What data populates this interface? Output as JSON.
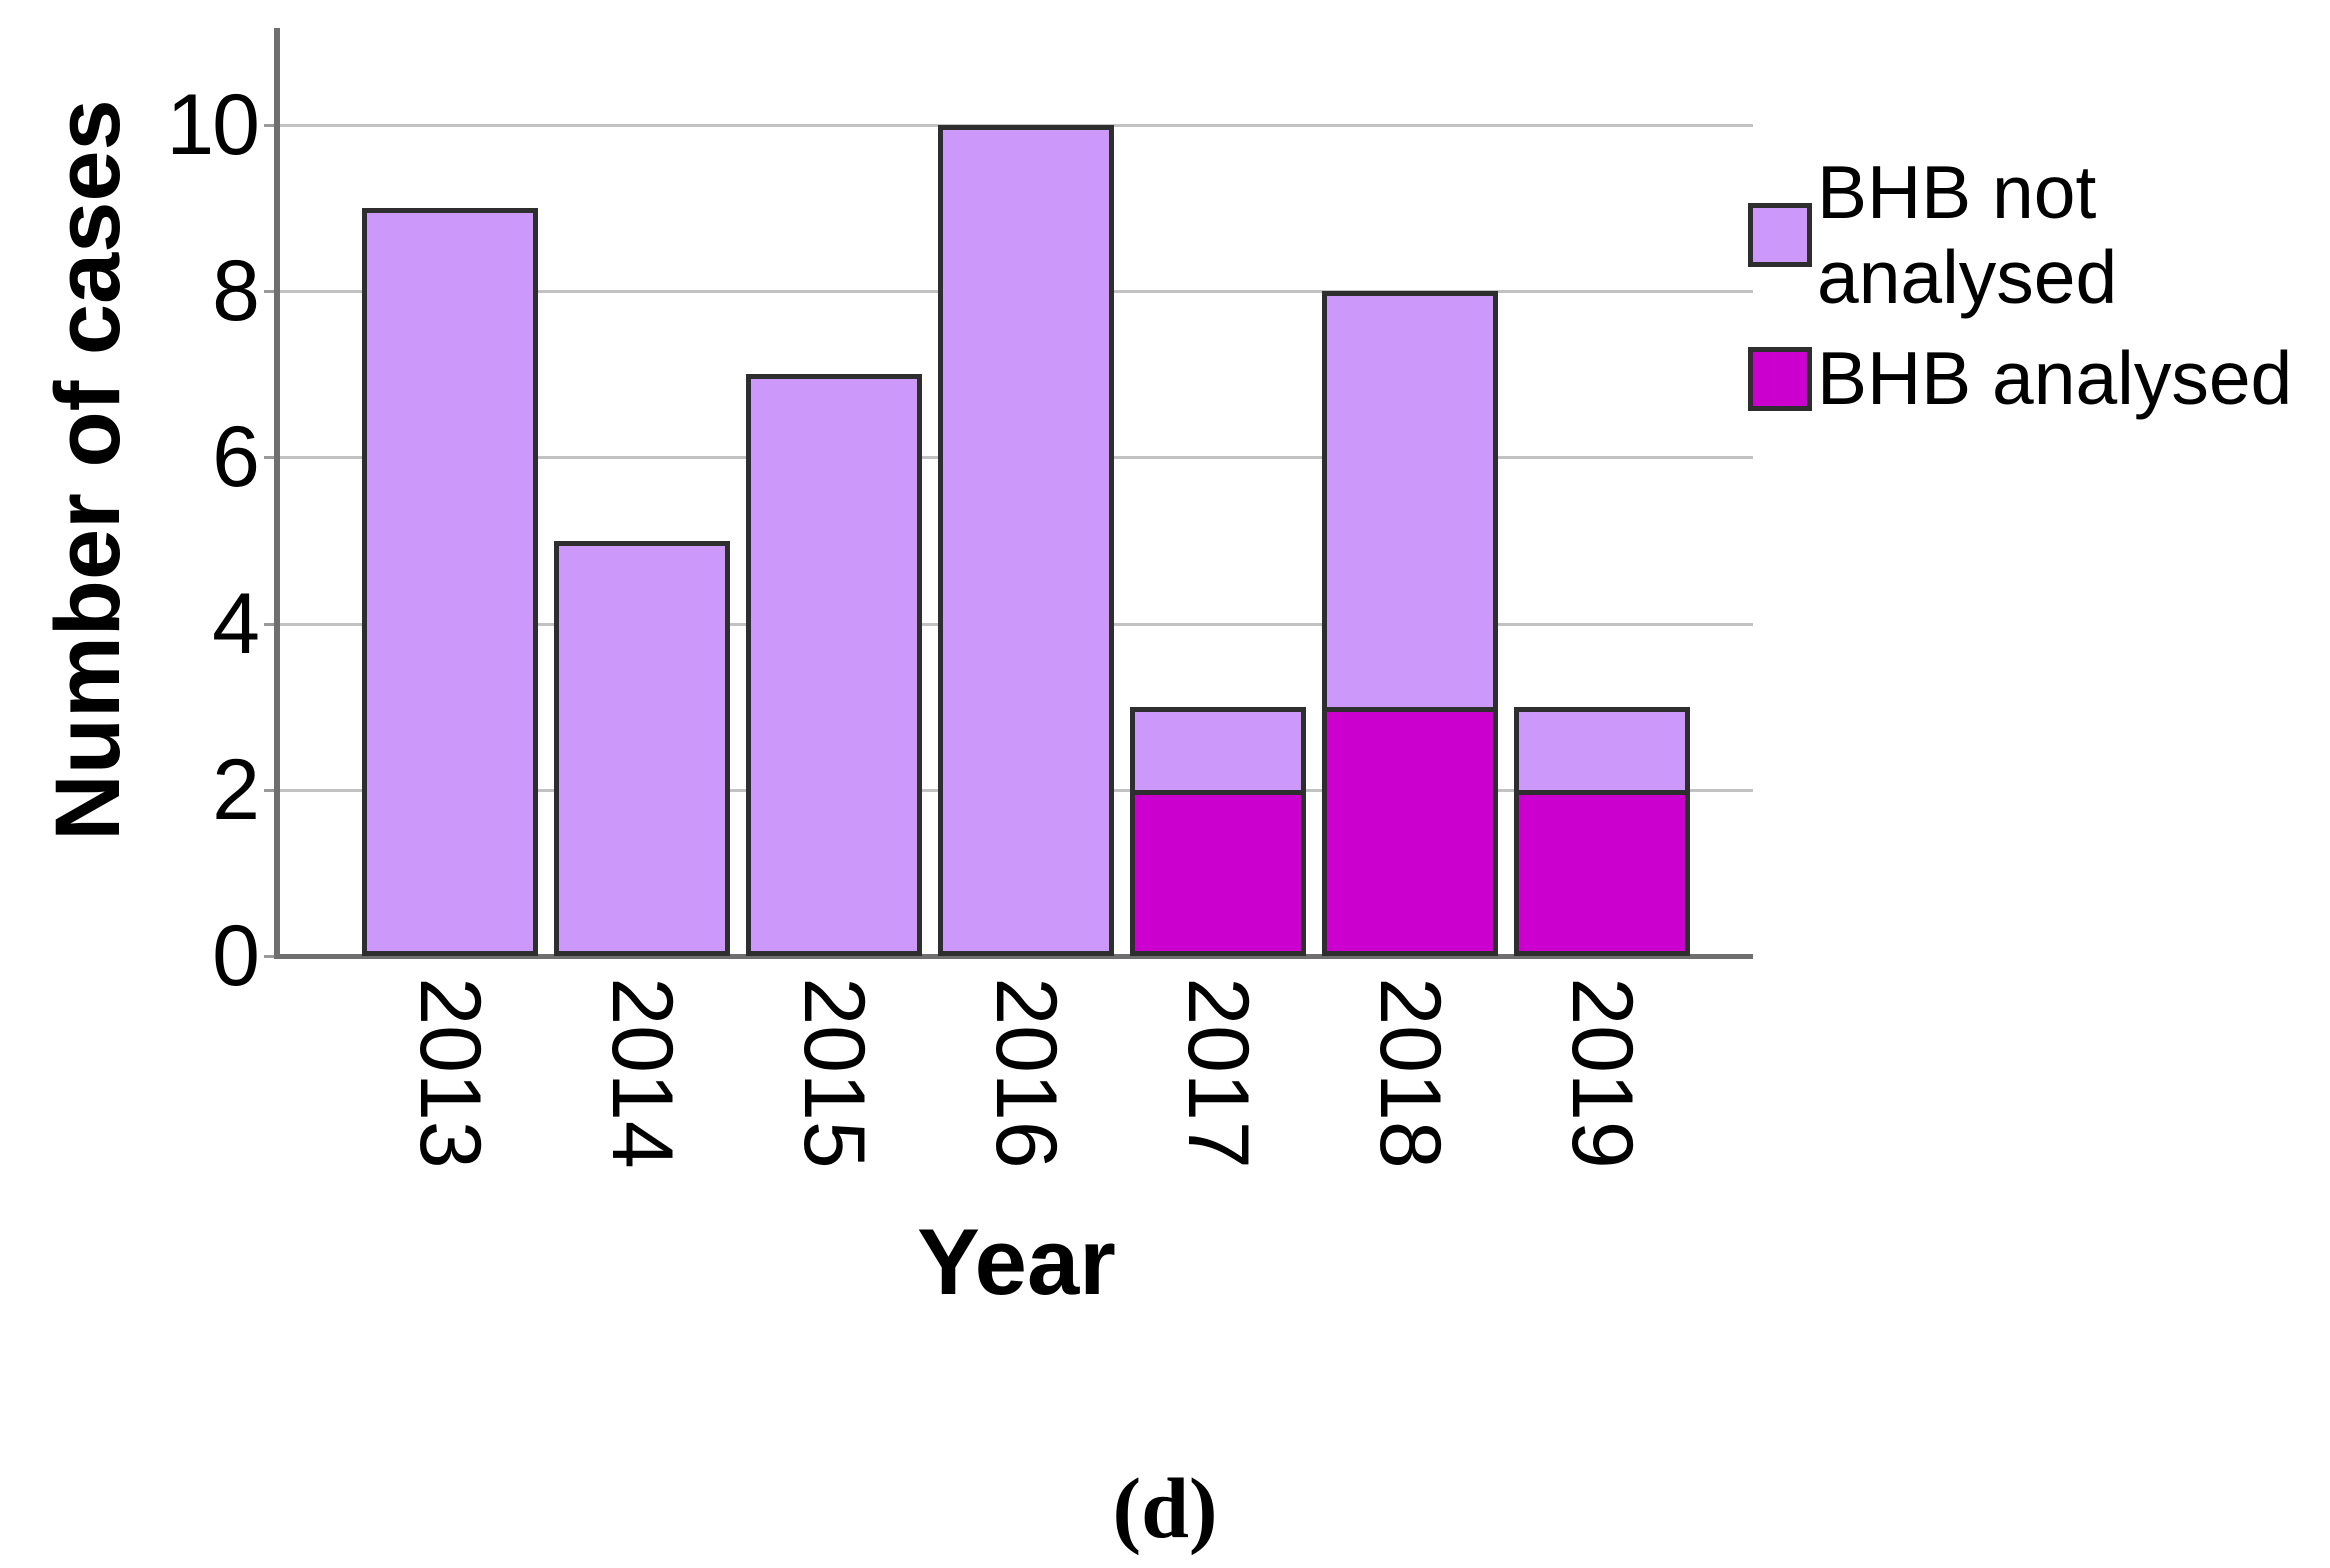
{
  "caption": "(d)",
  "chart_data": {
    "type": "bar",
    "stacked": true,
    "title": "",
    "xlabel": "Year",
    "ylabel": "Number of cases",
    "categories": [
      "2013",
      "2014",
      "2015",
      "2016",
      "2017",
      "2018",
      "2019"
    ],
    "series": [
      {
        "name": "BHB not analysed",
        "color": "#CC99FB",
        "values": [
          9,
          5,
          7,
          10,
          1,
          5,
          1
        ]
      },
      {
        "name": "BHB analysed",
        "color": "#CC00CE",
        "values": [
          0,
          0,
          0,
          0,
          2,
          3,
          2
        ]
      }
    ],
    "stack_order": [
      "BHB analysed",
      "BHB not analysed"
    ],
    "totals": [
      9,
      5,
      7,
      10,
      3,
      8,
      3
    ],
    "yticks": [
      0,
      2,
      4,
      6,
      8,
      10
    ],
    "ylim": [
      0,
      11.1
    ],
    "grid": "horizontal",
    "legend_position": "right-top",
    "legend": [
      {
        "label": "BHB not analysed",
        "lines": [
          "BHB not",
          "analysed"
        ],
        "color": "#CC99FB"
      },
      {
        "label": "BHB analysed",
        "lines": [
          "BHB analysed"
        ],
        "color": "#CC00CE"
      }
    ],
    "colors": {
      "bar_fill_not_analysed": "#CC99FB",
      "bar_fill_analysed": "#CC00CE",
      "bar_border": "#2E2E2E",
      "gridline": "#C2C2C2",
      "axis": "#6F6F6F",
      "text": "#000000"
    }
  }
}
